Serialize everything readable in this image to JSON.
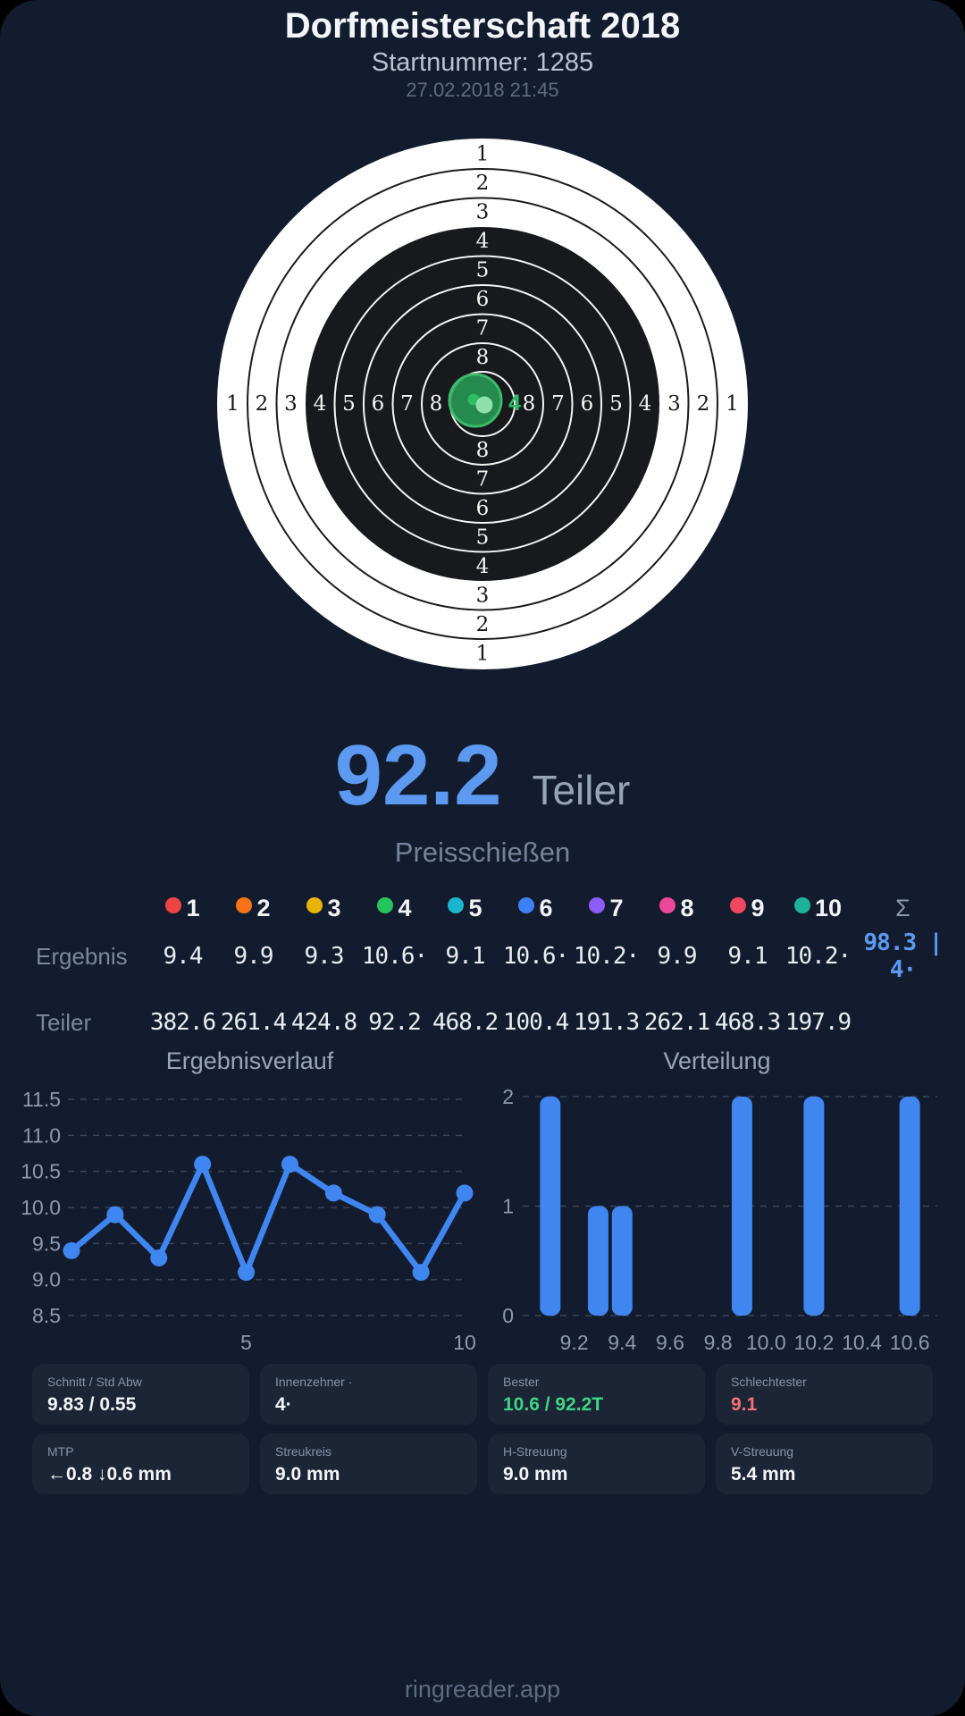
{
  "header": {
    "title": "Dorfmeisterschaft 2018",
    "subtitle": "Startnummer: 1285",
    "datetime": "27.02.2018 21:45"
  },
  "target": {
    "ring_labels": [
      "1",
      "2",
      "3",
      "4",
      "5",
      "6",
      "7",
      "8"
    ],
    "best_shot_marker": "4",
    "colors": {
      "paper": "#ffffff",
      "black_zone": "#17191d",
      "ring_line_on_white": "#1b1b1b",
      "ring_line_on_black": "#f5f5f5",
      "group_fill": "#279a54",
      "group_stroke": "#3dbb6a",
      "mean_dot": "#2dbd62",
      "best_dot": "#8edfa9",
      "marker_green": "#2dbd62"
    }
  },
  "score": {
    "value": "92.2",
    "unit": "Teiler",
    "discipline": "Preisschießen"
  },
  "shots": {
    "sigma": "Σ",
    "ergebnis_label": "Ergebnis",
    "teiler_label": "Teiler",
    "total": "98.3 | 4·",
    "columns": [
      {
        "num": "1",
        "color": "#ef4444",
        "ergebnis": "9.4",
        "teiler": "382.6"
      },
      {
        "num": "2",
        "color": "#f97316",
        "ergebnis": "9.9",
        "teiler": "261.4"
      },
      {
        "num": "3",
        "color": "#eab308",
        "ergebnis": "9.3",
        "teiler": "424.8"
      },
      {
        "num": "4",
        "color": "#22c55e",
        "ergebnis": "10.6·",
        "teiler": "92.2"
      },
      {
        "num": "5",
        "color": "#1ab6cf",
        "ergebnis": "9.1",
        "teiler": "468.2"
      },
      {
        "num": "6",
        "color": "#3b82f6",
        "ergebnis": "10.6·",
        "teiler": "100.4"
      },
      {
        "num": "7",
        "color": "#8b5cf6",
        "ergebnis": "10.2·",
        "teiler": "191.3"
      },
      {
        "num": "8",
        "color": "#ec4899",
        "ergebnis": "9.9",
        "teiler": "262.1"
      },
      {
        "num": "9",
        "color": "#f0475f",
        "ergebnis": "9.1",
        "teiler": "468.3"
      },
      {
        "num": "10",
        "color": "#1cb39a",
        "ergebnis": "10.2·",
        "teiler": "197.9"
      }
    ]
  },
  "chart_data": [
    {
      "type": "line",
      "title": "Ergebnisverlauf",
      "x": [
        1,
        2,
        3,
        4,
        5,
        6,
        7,
        8,
        9,
        10
      ],
      "values": [
        9.4,
        9.9,
        9.3,
        10.6,
        9.1,
        10.6,
        10.2,
        9.9,
        9.1,
        10.2
      ],
      "ylim": [
        8.5,
        11.5
      ],
      "yticks": [
        "11.5",
        "11.0",
        "10.5",
        "10.0",
        "9.5",
        "9.0",
        "8.5"
      ],
      "ytick_vals": [
        11.5,
        11.0,
        10.5,
        10.0,
        9.5,
        9.0,
        8.5
      ],
      "xticks": [
        "5",
        "10"
      ],
      "xtick_vals": [
        5,
        10
      ],
      "grid": "dashed",
      "line_color": "#3f86f0"
    },
    {
      "type": "bar",
      "title": "Verteilung",
      "bins": [
        {
          "x": 9.1,
          "count": 2
        },
        {
          "x": 9.3,
          "count": 1
        },
        {
          "x": 9.4,
          "count": 1
        },
        {
          "x": 9.9,
          "count": 2
        },
        {
          "x": 10.2,
          "count": 2
        },
        {
          "x": 10.6,
          "count": 2
        }
      ],
      "xlim": [
        9.0,
        10.7
      ],
      "ylim": [
        0,
        2
      ],
      "yticks": [
        "2",
        "1",
        "0"
      ],
      "ytick_vals": [
        2,
        1,
        0
      ],
      "xticks": [
        "9.2",
        "9.4",
        "9.6",
        "9.8",
        "10.0",
        "10.2",
        "10.4",
        "10.6"
      ],
      "xtick_vals": [
        9.2,
        9.4,
        9.6,
        9.8,
        10.0,
        10.2,
        10.4,
        10.6
      ],
      "grid": "dashed",
      "bar_color": "#3f86f0"
    }
  ],
  "cards": [
    {
      "label": "Schnitt / Std Abw",
      "value": "9.83 / 0.55",
      "color": "#f2f4f8"
    },
    {
      "label": "Innenzehner ·",
      "value": "4·",
      "color": "#f2f4f8"
    },
    {
      "label": "Bester",
      "value": "10.6 / 92.2T",
      "color": "#3ed584"
    },
    {
      "label": "Schlechtester",
      "value": "9.1",
      "color": "#f07474"
    },
    {
      "label": "MTP",
      "value": "←0.8 ↓0.6 mm",
      "color": "#f2f4f8"
    },
    {
      "label": "Streukreis",
      "value": "9.0 mm",
      "color": "#f2f4f8"
    },
    {
      "label": "H-Streuung",
      "value": "9.0 mm",
      "color": "#f2f4f8"
    },
    {
      "label": "V-Streuung",
      "value": "5.4 mm",
      "color": "#f2f4f8"
    }
  ],
  "footer": "ringreader.app"
}
